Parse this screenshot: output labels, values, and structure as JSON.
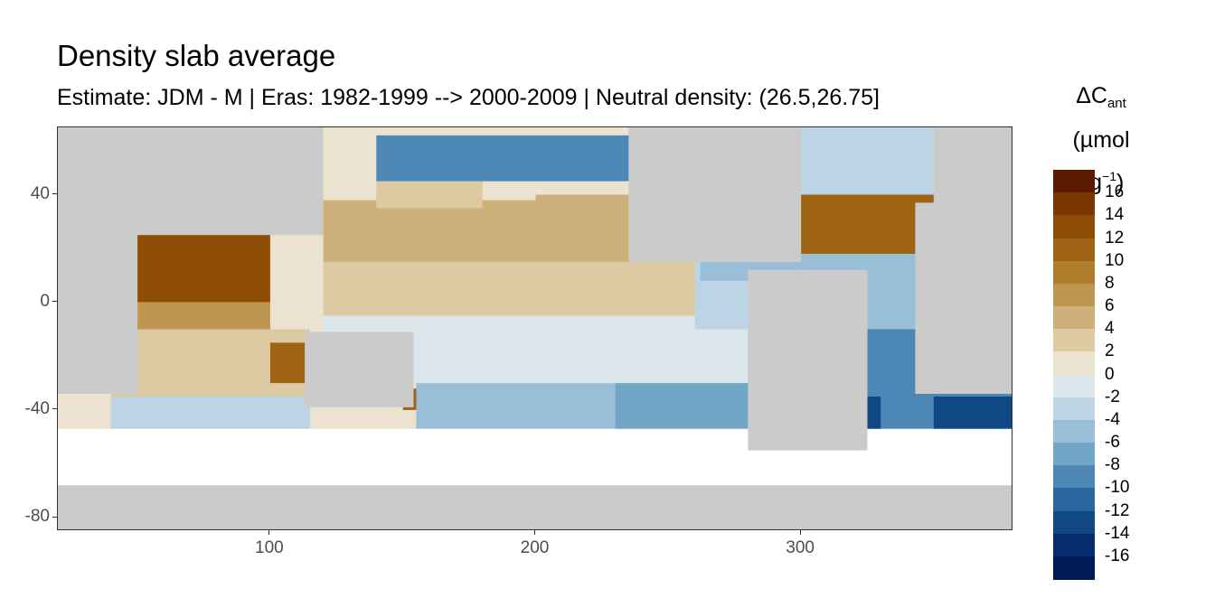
{
  "title": "Density slab average",
  "subtitle": "Estimate: JDM - M | Eras: 1982-1999 --> 2000-2009 | Neutral density: (26.5,26.75]",
  "legend": {
    "title_main": "ΔC",
    "title_sub": "ant",
    "title_unit_pre": "(µmol kg",
    "title_unit_sup": "−1",
    "title_unit_post": ")",
    "labels": [
      "16",
      "14",
      "12",
      "10",
      "8",
      "6",
      "4",
      "2",
      "0",
      "-2",
      "-4",
      "-6",
      "-8",
      "-10",
      "-12",
      "-14",
      "-16"
    ]
  },
  "colors": {
    "land": "#cbcbcb",
    "ocean_missing": "#ffffff",
    "panel_border": "#333333",
    "scale": [
      "#5c1a00",
      "#7a3700",
      "#8f4d06",
      "#9e6414",
      "#ae7e2c",
      "#bd974f",
      "#cdb07a",
      "#ddcaa3",
      "#ebe2d0",
      "#dce7ec",
      "#bcd4e3",
      "#98bfd7",
      "#72a6c7",
      "#4c87b5",
      "#2a66a0",
      "#104886",
      "#062c6d",
      "#001a55"
    ]
  },
  "chart_data": {
    "type": "heatmap",
    "title": "Density slab average",
    "subtitle": "Estimate: JDM - M | Eras: 1982-1999 --> 2000-2009 | Neutral density: (26.5,26.75]",
    "xlabel": "",
    "ylabel": "",
    "x_ticks": [
      100,
      200,
      300
    ],
    "y_ticks": [
      40,
      0,
      -40,
      -80
    ],
    "xlim": [
      20,
      380
    ],
    "ylim": [
      -85,
      65
    ],
    "grid": true,
    "legend_position": "right",
    "colorbar": {
      "title": "ΔC_ant (µmol kg⁻¹)",
      "breaks": [
        16,
        14,
        12,
        10,
        8,
        6,
        4,
        2,
        0,
        -2,
        -4,
        -6,
        -8,
        -10,
        -12,
        -14,
        -16
      ],
      "range": [
        -18,
        18
      ],
      "bin_width": 2
    },
    "land_regions": [
      {
        "name": "africa_west",
        "lon": [
          20,
          50
        ],
        "lat": [
          -34,
          65
        ]
      },
      {
        "name": "asia",
        "lon": [
          20,
          120
        ],
        "lat": [
          25,
          65
        ]
      },
      {
        "name": "australia",
        "lon": [
          113,
          154
        ],
        "lat": [
          -39,
          -11
        ]
      },
      {
        "name": "north_america",
        "lon": [
          235,
          300
        ],
        "lat": [
          15,
          65
        ]
      },
      {
        "name": "south_america",
        "lon": [
          280,
          325
        ],
        "lat": [
          -55,
          12
        ]
      },
      {
        "name": "africa_east",
        "lon": [
          343,
          380
        ],
        "lat": [
          -34,
          37
        ]
      },
      {
        "name": "europe",
        "lon": [
          350,
          380
        ],
        "lat": [
          36,
          65
        ]
      },
      {
        "name": "antarctica",
        "lon": [
          20,
          380
        ],
        "lat": [
          -85,
          -68
        ]
      }
    ],
    "missing_band": {
      "lat": [
        -70,
        -47
      ]
    },
    "regions": [
      {
        "name": "arabian_sea_bay_of_bengal",
        "lon": [
          40,
          100
        ],
        "lat": [
          0,
          26
        ],
        "value": 13
      },
      {
        "name": "north_indian_equatorial",
        "lon": [
          40,
          100
        ],
        "lat": [
          -10,
          0
        ],
        "value": 7
      },
      {
        "name": "south_indian_subtropical",
        "lon": [
          40,
          115
        ],
        "lat": [
          -35,
          -10
        ],
        "value": 3
      },
      {
        "name": "southern_indian",
        "lon": [
          40,
          115
        ],
        "lat": [
          -47,
          -35
        ],
        "value": -2
      },
      {
        "name": "australia_west_coast",
        "lon": [
          100,
          115
        ],
        "lat": [
          -30,
          -15
        ],
        "value": 11
      },
      {
        "name": "tasman_sea",
        "lon": [
          150,
          160
        ],
        "lat": [
          -40,
          -32
        ],
        "value": 11
      },
      {
        "name": "south_pacific",
        "lon": [
          155,
          280
        ],
        "lat": [
          -47,
          -30
        ],
        "value": -5
      },
      {
        "name": "southeast_pacific",
        "lon": [
          230,
          290
        ],
        "lat": [
          -47,
          -25
        ],
        "value": -6
      },
      {
        "name": "tropical_pacific_south",
        "lon": [
          120,
          280
        ],
        "lat": [
          -30,
          -5
        ],
        "value": -1
      },
      {
        "name": "equatorial_pacific",
        "lon": [
          120,
          280
        ],
        "lat": [
          -5,
          15
        ],
        "value": 3
      },
      {
        "name": "north_pacific_subtropical",
        "lon": [
          120,
          240
        ],
        "lat": [
          15,
          38
        ],
        "value": 5
      },
      {
        "name": "kuroshio_extension",
        "lon": [
          140,
          180
        ],
        "lat": [
          35,
          45
        ],
        "value": 3
      },
      {
        "name": "subpolar_north_pacific",
        "lon": [
          140,
          240
        ],
        "lat": [
          45,
          62
        ],
        "value": -8
      },
      {
        "name": "northeast_pacific",
        "lon": [
          200,
          240
        ],
        "lat": [
          20,
          40
        ],
        "value": 6
      },
      {
        "name": "eastern_tropical_pacific",
        "lon": [
          260,
          285
        ],
        "lat": [
          -10,
          15
        ],
        "value": -3
      },
      {
        "name": "gulf_of_mexico_caribbean",
        "lon": [
          262,
          300
        ],
        "lat": [
          8,
          30
        ],
        "value": -4
      },
      {
        "name": "subtropical_north_atlantic",
        "lon": [
          300,
          350
        ],
        "lat": [
          18,
          40
        ],
        "value": 12
      },
      {
        "name": "north_atlantic_subpolar",
        "lon": [
          295,
          350
        ],
        "lat": [
          40,
          65
        ],
        "value": -2
      },
      {
        "name": "tropical_atlantic",
        "lon": [
          300,
          350
        ],
        "lat": [
          -10,
          18
        ],
        "value": -4
      },
      {
        "name": "south_atlantic_subtropical",
        "lon": [
          320,
          345
        ],
        "lat": [
          -38,
          -28
        ],
        "value": 9
      },
      {
        "name": "south_atlantic",
        "lon": [
          325,
          380
        ],
        "lat": [
          -47,
          -10
        ],
        "value": -8
      },
      {
        "name": "argentine_basin",
        "lon": [
          300,
          330
        ],
        "lat": [
          -47,
          -35
        ],
        "value": -13
      },
      {
        "name": "agulhas_region",
        "lon": [
          350,
          380
        ],
        "lat": [
          -47,
          -35
        ],
        "value": -12
      }
    ]
  }
}
